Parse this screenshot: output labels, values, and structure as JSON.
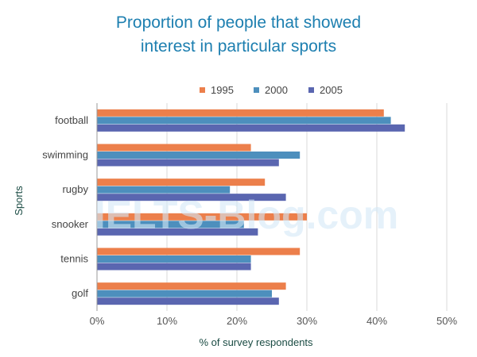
{
  "chart_data": {
    "type": "bar",
    "orientation": "horizontal",
    "title": [
      "Proportion of people that showed",
      "interest in particular sports"
    ],
    "xlabel": "% of survey respondents",
    "ylabel": "Sports",
    "categories": [
      "football",
      "swimming",
      "rugby",
      "snooker",
      "tennis",
      "golf"
    ],
    "series": [
      {
        "name": "1995",
        "color": "#ec7f4b",
        "values": [
          41,
          22,
          24,
          30,
          29,
          27
        ]
      },
      {
        "name": "2000",
        "color": "#4d8fbd",
        "values": [
          42,
          29,
          19,
          21,
          22,
          25
        ]
      },
      {
        "name": "2005",
        "color": "#5a66b0",
        "values": [
          44,
          26,
          27,
          23,
          22,
          26
        ]
      }
    ],
    "xlim": [
      0,
      50
    ],
    "xticks": [
      "0%",
      "10%",
      "20%",
      "30%",
      "40%",
      "50%"
    ],
    "grid": true,
    "legend_position": "top",
    "watermark": "IELTS-Blog.com"
  }
}
